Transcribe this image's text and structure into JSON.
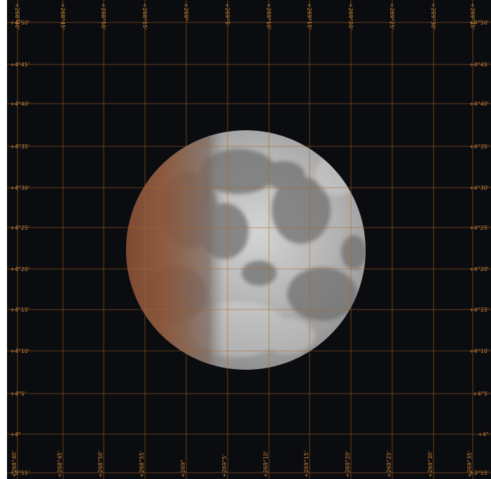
{
  "grid": {
    "line_color": "#a8642a",
    "label_color": "#c8833a",
    "ra_labels": [
      "+268°40'",
      "+268°45'",
      "+268°50'",
      "+268°55'",
      "+269°",
      "+269°5'",
      "+269°10'",
      "+269°15'",
      "+269°20'",
      "+269°25'",
      "+269°30'",
      "+269°35'"
    ],
    "ra_labels_bottom": [
      "+268°40'",
      "+268°45'",
      "+268°50'",
      "+268°55'",
      "+269°",
      "+269°5'",
      "+269°10'",
      "+269°15'",
      "+269°20'",
      "+269°25'",
      "+269°30'",
      "+269°35'"
    ],
    "dec_labels": [
      "+4°50'",
      "+4°45'",
      "+4°40'",
      "+4°35'",
      "+4°30'",
      "+4°25'",
      "+4°20'",
      "+4°15'",
      "+4°10'",
      "+4°5'",
      "+4°",
      "+3°55'"
    ]
  },
  "moon": {
    "lit_color": "#b9b9b9",
    "shadow_color": "#8a4a2c"
  }
}
